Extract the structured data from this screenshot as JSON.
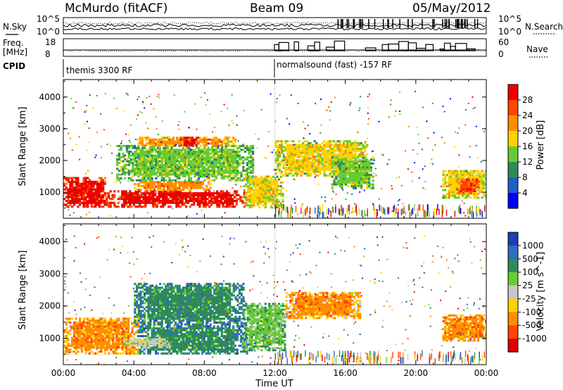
{
  "header": {
    "station": "McMurdo (fitACF)",
    "beam": "Beam 09",
    "date": "05/May/2012"
  },
  "strip_labels": {
    "nsky": "N.Sky",
    "freq_line1": "Freq.",
    "freq_line2": "[MHz]",
    "cpid": "CPID",
    "nsearch": "N.Search",
    "nave": "Nave"
  },
  "strip_ticks": {
    "nsky_top": "10^5",
    "nsky_bottom": "10^0",
    "nsearch_top": "10^5",
    "nsearch_bottom": "10^0",
    "freq_top": "18",
    "freq_bottom": "8",
    "nave_top": "60",
    "nave_bottom": "0"
  },
  "cpid_segments": [
    {
      "label": "themis 3300 RF",
      "start_hour": 0
    },
    {
      "label": "normalsound (fast) -157 RF",
      "start_hour": 12
    }
  ],
  "chart_data": [
    {
      "type": "heatmap",
      "panel": "power",
      "xlabel": "",
      "ylabel": "Slant Range [km]",
      "xlim": [
        0,
        24
      ],
      "ylim": [
        180,
        4550
      ],
      "y_ticks": [
        "1000",
        "2000",
        "3000",
        "4000"
      ],
      "colorbar_label": "Power [dB]",
      "colorbar_ticks": [
        "4",
        "8",
        "12",
        "16",
        "20",
        "24",
        "28"
      ],
      "colorbar_colors": [
        "#0000ff",
        "#1e5fc8",
        "#2e8b57",
        "#66cc33",
        "#ffd200",
        "#ff8c00",
        "#ff4500",
        "#ee0000"
      ],
      "regions": [
        {
          "t": [
            0.0,
            2.4
          ],
          "r": [
            520,
            1450
          ],
          "level": 7
        },
        {
          "t": [
            2.4,
            10.4
          ],
          "r": [
            520,
            1050
          ],
          "level": 7
        },
        {
          "t": [
            4.0,
            8.3
          ],
          "r": [
            1050,
            1350
          ],
          "level": 5
        },
        {
          "t": [
            3.0,
            10.8
          ],
          "r": [
            1350,
            2450
          ],
          "level": 3
        },
        {
          "t": [
            4.2,
            9.8
          ],
          "r": [
            2450,
            2700
          ],
          "level": 5
        },
        {
          "t": [
            6.6,
            7.6
          ],
          "r": [
            2450,
            2700
          ],
          "level": 7
        },
        {
          "t": [
            10.2,
            12.4
          ],
          "r": [
            500,
            1500
          ],
          "level": 4
        },
        {
          "t": [
            12.0,
            17.2
          ],
          "r": [
            1500,
            2600
          ],
          "level": 4
        },
        {
          "t": [
            15.2,
            17.6
          ],
          "r": [
            1100,
            2100
          ],
          "level": 3
        },
        {
          "t": [
            21.5,
            24.0
          ],
          "r": [
            800,
            1700
          ],
          "level": 4
        },
        {
          "t": [
            22.3,
            23.6
          ],
          "r": [
            950,
            1400
          ],
          "level": 6
        }
      ]
    },
    {
      "type": "heatmap",
      "panel": "velocity",
      "xlabel": "Time UT",
      "ylabel": "Slant Range [km]",
      "xlim": [
        0,
        24
      ],
      "ylim": [
        180,
        4550
      ],
      "y_ticks": [
        "1000",
        "2000",
        "3000",
        "4000"
      ],
      "x_ticks": [
        "00:00",
        "04:00",
        "08:00",
        "12:00",
        "16:00",
        "20:00",
        "00:00"
      ],
      "colorbar_label": "Velocity [m s^-1]",
      "colorbar_ticks": [
        "1000",
        "500",
        "100",
        "25",
        "-25",
        "-100",
        "-500",
        "-1000"
      ],
      "colorbar_colors": [
        "#1e3cb4",
        "#2f6ec0",
        "#2e8b57",
        "#66cc33",
        "#c8c8c8",
        "#ffd200",
        "#ff8c00",
        "#ff4500",
        "#e00000"
      ],
      "regions": [
        {
          "t": [
            0.0,
            4.2
          ],
          "r": [
            500,
            1600
          ],
          "level": 6
        },
        {
          "t": [
            4.2,
            10.4
          ],
          "r": [
            500,
            1400
          ],
          "level": 2
        },
        {
          "t": [
            4.0,
            10.2
          ],
          "r": [
            1400,
            2700
          ],
          "level": 2
        },
        {
          "t": [
            3.4,
            6.0
          ],
          "r": [
            700,
            1000
          ],
          "level": 4
        },
        {
          "t": [
            10.2,
            12.6
          ],
          "r": [
            600,
            2100
          ],
          "level": 3
        },
        {
          "t": [
            12.6,
            16.8
          ],
          "r": [
            1600,
            2400
          ],
          "level": 6
        },
        {
          "t": [
            21.5,
            24.0
          ],
          "r": [
            900,
            1700
          ],
          "level": 6
        }
      ]
    }
  ]
}
